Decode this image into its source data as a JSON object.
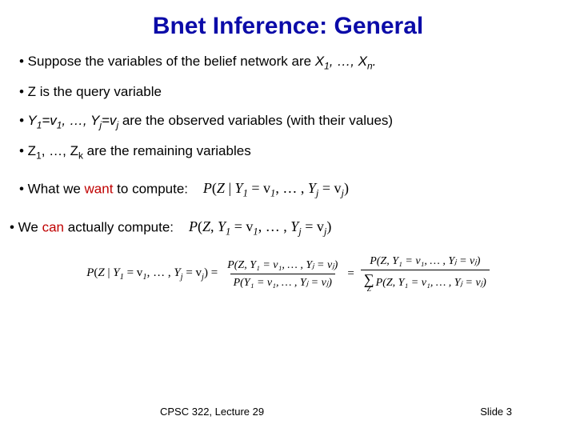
{
  "title": "Bnet Inference: General",
  "bullets": {
    "b1_prefix": "• Suppose the variables of the belief network are ",
    "b1_vars": "X",
    "b1_sub1": "1",
    "b1_mid": ", …, ",
    "b1_vars2": "X",
    "b1_sub2": "n",
    "b1_suffix": ".",
    "b2": "• Z is the query variable",
    "b3_prefix": "• ",
    "b3_y1": "Y",
    "b3_s1": "1",
    "b3_eq1": "=v",
    "b3_s1b": "1",
    "b3_mid": ", …, Y",
    "b3_sj": "j",
    "b3_eq2": "=v",
    "b3_sjb": "j",
    "b3_suffix": " are the observed variables (with their values)",
    "b4_prefix": "• Z",
    "b4_s1": "1",
    "b4_mid": ", …, Z",
    "b4_sk": "k",
    "b4_suffix": " are the remaining variables",
    "want_prefix": "• What we ",
    "want_word": "want",
    "want_suffix": " to compute:",
    "can_prefix": "• We ",
    "can_word": "can",
    "can_suffix": " actually compute:"
  },
  "formula_want": {
    "p": "P",
    "open": "(",
    "z": "Z",
    "bar": " | ",
    "y1": "Y",
    "s1": "1",
    "eq": " = v",
    "s1b": "1",
    "sep": ", … , ",
    "yj": "Y",
    "sj": "j",
    "eq2": " = v",
    "sjb": "j",
    "close": ")"
  },
  "formula_can": {
    "p": "P",
    "open": "(",
    "z": "Z",
    "comma": ", ",
    "y1": "Y",
    "s1": "1",
    "eq": " = v",
    "s1b": "1",
    "sep": ", … , ",
    "yj": "Y",
    "sj": "j",
    "eq2": " = v",
    "sjb": "j",
    "close": ")"
  },
  "eq": {
    "lhs_p": "P",
    "lhs_open": "(",
    "lhs_z": "Z",
    "lhs_bar": " | ",
    "lhs_y1": "Y",
    "lhs_s1": "1",
    "lhs_eq": " = v",
    "lhs_s1b": "1",
    "lhs_sep": ", … , ",
    "lhs_yj": "Y",
    "lhs_sj": "j",
    "lhs_eq2": " = v",
    "lhs_sjb": "j",
    "lhs_close": ") = ",
    "num1": "P(Z, Y₁ = v₁, … , Yⱼ = vⱼ)",
    "den1": "P(Y₁ = v₁, … , Yⱼ = vⱼ)",
    "equals2": " = ",
    "num2": "P(Z, Y₁ = v₁, … , Yⱼ = vⱼ)",
    "sigma": "∑",
    "sigma_sub": "Z",
    "den2_body": "P(Z, Y₁ = v₁, … , Yⱼ = vⱼ)"
  },
  "footer": {
    "left": "CPSC 322, Lecture 29",
    "right": "Slide 3"
  }
}
